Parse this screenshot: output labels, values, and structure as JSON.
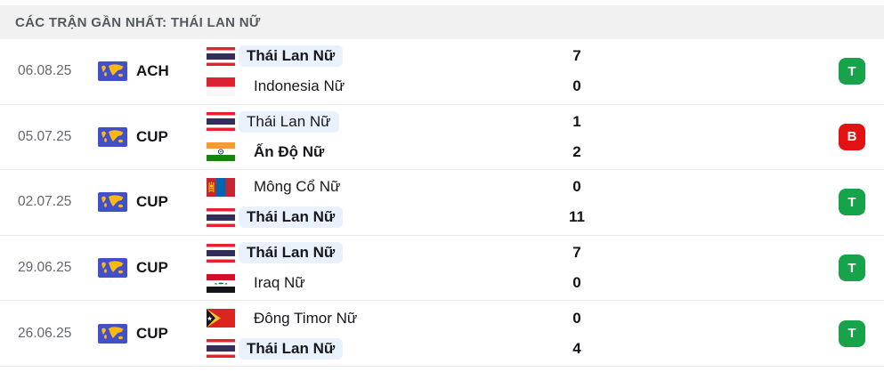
{
  "header": {
    "title": "CÁC TRẬN GẦN NHẤT: THÁI LAN NỮ"
  },
  "colors": {
    "win": "#17a34a",
    "loss": "#e31212",
    "team_highlight": "#e9f1fc",
    "comp_icon_bg": "#4150c8",
    "comp_icon_map": "#fdb913"
  },
  "matches": [
    {
      "date": "06.08.25",
      "competition": "ACH",
      "competition_icon": "world-map-icon",
      "home": {
        "name": "Thái Lan Nữ",
        "flag": "thailand",
        "score": "7",
        "winner": true,
        "highlight": true
      },
      "away": {
        "name": "Indonesia Nữ",
        "flag": "indonesia",
        "score": "0",
        "winner": false,
        "highlight": false
      },
      "result": {
        "label": "T",
        "type": "win"
      }
    },
    {
      "date": "05.07.25",
      "competition": "CUP",
      "competition_icon": "world-map-icon",
      "home": {
        "name": "Thái Lan Nữ",
        "flag": "thailand",
        "score": "1",
        "winner": false,
        "highlight": true
      },
      "away": {
        "name": "Ấn Độ Nữ",
        "flag": "india",
        "score": "2",
        "winner": true,
        "highlight": false
      },
      "result": {
        "label": "B",
        "type": "loss"
      }
    },
    {
      "date": "02.07.25",
      "competition": "CUP",
      "competition_icon": "world-map-icon",
      "home": {
        "name": "Mông Cổ Nữ",
        "flag": "mongolia",
        "score": "0",
        "winner": false,
        "highlight": false
      },
      "away": {
        "name": "Thái Lan Nữ",
        "flag": "thailand",
        "score": "11",
        "winner": true,
        "highlight": true
      },
      "result": {
        "label": "T",
        "type": "win"
      }
    },
    {
      "date": "29.06.25",
      "competition": "CUP",
      "competition_icon": "world-map-icon",
      "home": {
        "name": "Thái Lan Nữ",
        "flag": "thailand",
        "score": "7",
        "winner": true,
        "highlight": true
      },
      "away": {
        "name": "Iraq Nữ",
        "flag": "iraq",
        "score": "0",
        "winner": false,
        "highlight": false
      },
      "result": {
        "label": "T",
        "type": "win"
      }
    },
    {
      "date": "26.06.25",
      "competition": "CUP",
      "competition_icon": "world-map-icon",
      "home": {
        "name": "Đông Timor Nữ",
        "flag": "east-timor",
        "score": "0",
        "winner": false,
        "highlight": false
      },
      "away": {
        "name": "Thái Lan Nữ",
        "flag": "thailand",
        "score": "4",
        "winner": true,
        "highlight": true
      },
      "result": {
        "label": "T",
        "type": "win"
      }
    }
  ]
}
